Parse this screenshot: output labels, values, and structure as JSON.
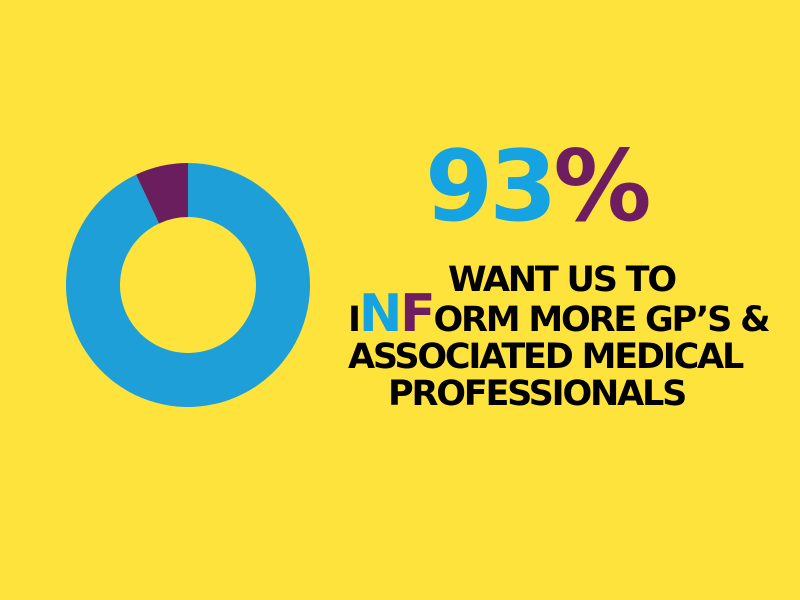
{
  "chart_data": {
    "type": "pie",
    "variant": "donut",
    "slices": [
      {
        "value": 93,
        "color": "#1E9FD8"
      },
      {
        "value": 7,
        "color": "#6B1E5E"
      }
    ]
  },
  "headline": {
    "number": "93",
    "percent_sign": "%"
  },
  "statement": {
    "line1": "WANT US TO",
    "line2_i": "I",
    "line2_n": "N",
    "line2_f": "F",
    "line2_rest": "ORM MORE GP’S &",
    "line3": "ASSOCIATED MEDICAL",
    "line4": "PROFESSIONALS"
  },
  "colors": {
    "background": "#FDE33C",
    "blue": "#16A3E2",
    "purple": "#6E1E60"
  }
}
